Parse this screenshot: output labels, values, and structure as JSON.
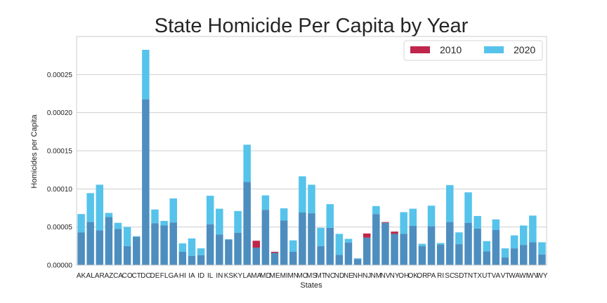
{
  "chart_data": {
    "type": "bar",
    "title": "State Homicide Per Capita by Year",
    "xlabel": "States",
    "ylabel": "Homicides per Capita",
    "ylim": [
      0,
      0.0003
    ],
    "yticks": [
      "0.00000",
      "0.00005",
      "0.00010",
      "0.00015",
      "0.00020",
      "0.00025"
    ],
    "grid": true,
    "legend_position": "top-right",
    "categories": [
      "AK",
      "AL",
      "AR",
      "AZ",
      "CA",
      "CO",
      "CT",
      "DC",
      "DE",
      "FL",
      "GA",
      "HI",
      "IA",
      "ID",
      "IL",
      "IN",
      "KS",
      "KY",
      "LA",
      "MA",
      "MD",
      "ME",
      "MI",
      "MN",
      "MO",
      "MS",
      "MT",
      "NC",
      "ND",
      "NE",
      "NH",
      "NJ",
      "NM",
      "NV",
      "NY",
      "OH",
      "OK",
      "OR",
      "PA",
      "RI",
      "SC",
      "SD",
      "TN",
      "TX",
      "UT",
      "VA",
      "VT",
      "WA",
      "WI",
      "WV",
      "WY"
    ],
    "series": [
      {
        "name": "2010",
        "color": "#c0264a",
        "values": [
          4.28e-05,
          5.65e-05,
          4.55e-05,
          6.3e-05,
          4.75e-05,
          2.5e-05,
          3.7e-05,
          0.0002175,
          5.5e-05,
          5.2e-05,
          5.6e-05,
          1.75e-05,
          1.2e-05,
          1.3e-05,
          5.35e-05,
          4e-05,
          3.35e-05,
          4.25e-05,
          0.000109,
          3.2e-05,
          7.25e-05,
          1.75e-05,
          5.85e-05,
          1.75e-05,
          6.9e-05,
          6.8e-05,
          2.5e-05,
          4.9e-05,
          1.35e-05,
          2.95e-05,
          8e-06,
          4.15e-05,
          6.7e-05,
          5.65e-05,
          4.4e-05,
          4.1e-05,
          5.15e-05,
          2.5e-05,
          5.1e-05,
          2.7e-05,
          5.65e-05,
          2.75e-05,
          5.55e-05,
          4.8e-05,
          1.8e-05,
          4.6e-05,
          1e-05,
          2.2e-05,
          2.65e-05,
          3e-05,
          1.4e-05
        ]
      },
      {
        "name": "2020",
        "color": "#56c3eb",
        "values": [
          6.7e-05,
          9.45e-05,
          0.0001055,
          6.85e-05,
          5.55e-05,
          5e-05,
          3.8e-05,
          0.0002825,
          7.3e-05,
          5.8e-05,
          8.75e-05,
          2.85e-05,
          3.5e-05,
          2.2e-05,
          9.1e-05,
          7.4e-05,
          3.4e-05,
          7.1e-05,
          0.000158,
          2.3e-05,
          9.15e-05,
          1.6e-05,
          7.45e-05,
          3.25e-05,
          0.0001165,
          0.0001055,
          4.9e-05,
          8e-05,
          4.1e-05,
          3.45e-05,
          9e-06,
          3.6e-05,
          7.75e-05,
          5.55e-05,
          4.1e-05,
          6.95e-05,
          7.4e-05,
          2.8e-05,
          7.8e-05,
          2.9e-05,
          0.000105,
          4.3e-05,
          9.55e-05,
          6.45e-05,
          3.15e-05,
          6e-05,
          2.2e-05,
          3.9e-05,
          5.2e-05,
          6.5e-05,
          3e-05
        ]
      }
    ]
  }
}
